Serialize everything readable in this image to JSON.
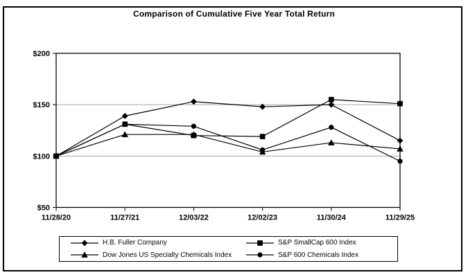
{
  "frame": {
    "title": "Comparison of Cumulative Five Year Total Return"
  },
  "chart_data": {
    "type": "line",
    "title": "Comparison of Cumulative Five Year Total Return",
    "x_labels": [
      "11/28/20",
      "11/27/21",
      "12/03/22",
      "12/02/23",
      "11/30/24",
      "11/29/25"
    ],
    "y_ticks": [
      50,
      100,
      150,
      200
    ],
    "y_tick_labels": [
      "$50",
      "$100",
      "$150",
      "$200"
    ],
    "ylim": [
      50,
      200
    ],
    "grid": "horizontal-gridlines-at-100-and-150",
    "legend_position": "bottom-boxed-2x2",
    "series": [
      {
        "name": "H.B. Fuller Company",
        "marker": "diamond",
        "values": [
          100,
          139,
          153,
          148,
          150,
          115
        ]
      },
      {
        "name": "S&P SmallCap 600 Index",
        "marker": "square",
        "values": [
          100,
          131,
          120,
          119,
          155,
          151
        ]
      },
      {
        "name": "Dow Jones US Specialty Chemicals Index",
        "marker": "triangle",
        "values": [
          100,
          121,
          121,
          104,
          113,
          107
        ]
      },
      {
        "name": "S&P 600 Chemicals Index",
        "marker": "circle",
        "values": [
          100,
          131,
          129,
          106,
          128,
          95
        ]
      }
    ],
    "colors": {
      "line": "#000000",
      "marker": "#000000",
      "gridline": "#a6a6a6",
      "axis": "#000000",
      "background": "#ffffff"
    }
  }
}
